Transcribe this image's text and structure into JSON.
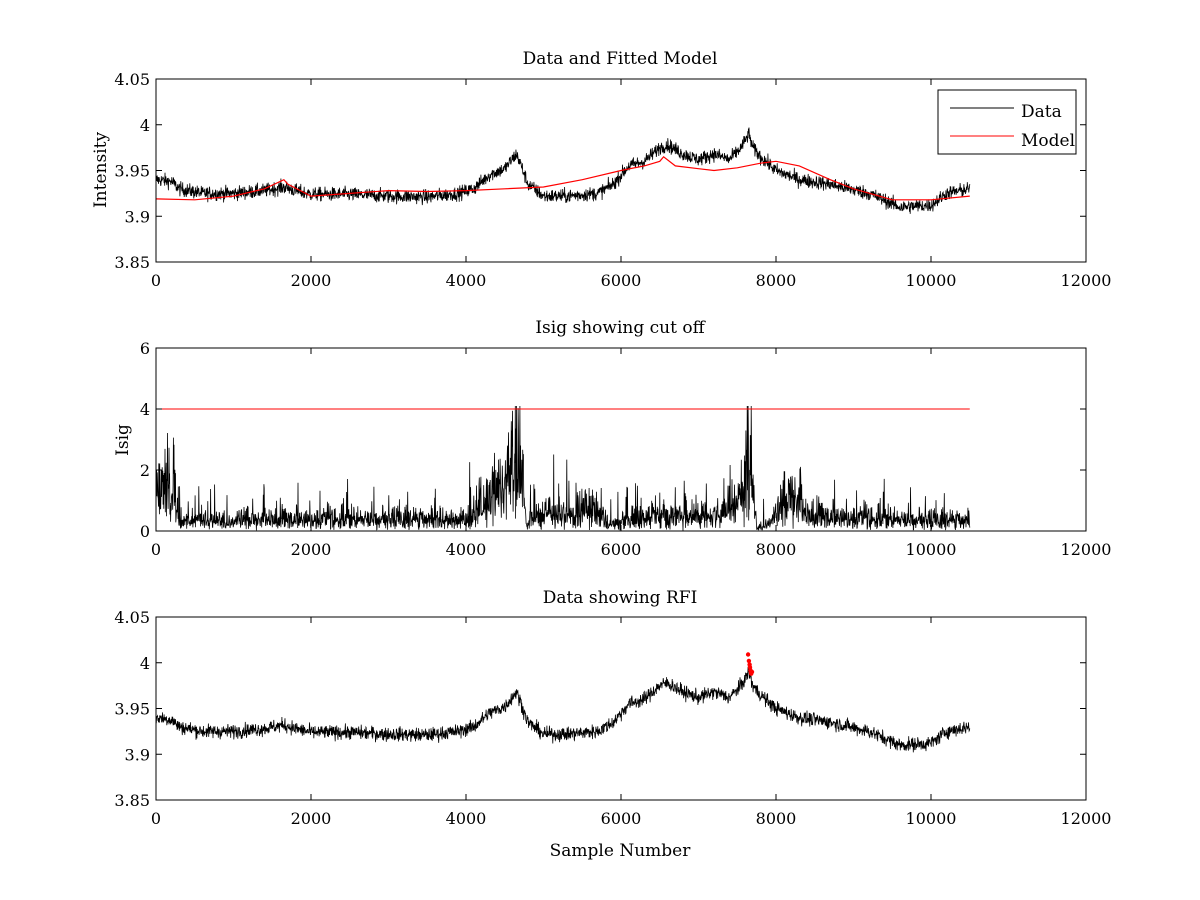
{
  "chart_data": [
    {
      "type": "line",
      "title": "Data and Fitted Model",
      "xlabel": "",
      "ylabel": "Intensity",
      "xlim": [
        0,
        12000
      ],
      "ylim": [
        3.85,
        4.05
      ],
      "xticks": [
        0,
        2000,
        4000,
        6000,
        8000,
        10000,
        12000
      ],
      "yticks": [
        3.85,
        3.9,
        3.95,
        4,
        4.05
      ],
      "xtick_labels": [
        "0",
        "2000",
        "4000",
        "6000",
        "8000",
        "10000",
        "12000"
      ],
      "ytick_labels": [
        "3.85",
        "3.9",
        "3.95",
        "4",
        "4.05"
      ],
      "grid": false,
      "legend": {
        "position": "top-right",
        "entries": [
          "Data",
          "Model"
        ]
      },
      "series": [
        {
          "name": "Data",
          "color": "#000000",
          "style": "noisy",
          "noise": 0.011,
          "x": [
            0,
            200,
            300,
            600,
            1000,
            1400,
            1650,
            1800,
            2000,
            2500,
            3000,
            3500,
            3900,
            4100,
            4300,
            4500,
            4650,
            4700,
            4800,
            5000,
            5300,
            5700,
            5900,
            6100,
            6300,
            6500,
            6600,
            6800,
            7000,
            7200,
            7400,
            7550,
            7650,
            7700,
            7800,
            8000,
            8300,
            8700,
            9200,
            9600,
            10000,
            10200,
            10500
          ],
          "y": [
            3.94,
            3.938,
            3.93,
            3.925,
            3.925,
            3.928,
            3.932,
            3.928,
            3.924,
            3.924,
            3.922,
            3.921,
            3.925,
            3.93,
            3.945,
            3.952,
            3.968,
            3.958,
            3.935,
            3.922,
            3.922,
            3.925,
            3.935,
            3.955,
            3.96,
            3.975,
            3.978,
            3.968,
            3.962,
            3.968,
            3.962,
            3.975,
            3.99,
            3.975,
            3.965,
            3.95,
            3.94,
            3.935,
            3.925,
            3.91,
            3.912,
            3.925,
            3.93
          ]
        },
        {
          "name": "Model",
          "color": "#ff0000",
          "style": "smooth",
          "x": [
            0,
            500,
            1000,
            1400,
            1650,
            1700,
            2000,
            2500,
            3000,
            3500,
            4000,
            4500,
            5000,
            5500,
            6000,
            6300,
            6500,
            6550,
            6700,
            7000,
            7200,
            7500,
            7800,
            8000,
            8300,
            8700,
            9000,
            9500,
            10000,
            10500
          ],
          "y": [
            3.919,
            3.918,
            3.922,
            3.93,
            3.94,
            3.935,
            3.922,
            3.925,
            3.928,
            3.927,
            3.928,
            3.93,
            3.932,
            3.94,
            3.95,
            3.955,
            3.96,
            3.965,
            3.955,
            3.952,
            3.95,
            3.953,
            3.958,
            3.96,
            3.955,
            3.94,
            3.93,
            3.918,
            3.918,
            3.922
          ]
        }
      ]
    },
    {
      "type": "line",
      "title": "Isig showing cut off",
      "xlabel": "",
      "ylabel": "Isig",
      "xlim": [
        0,
        12000
      ],
      "ylim": [
        0,
        6
      ],
      "xticks": [
        0,
        2000,
        4000,
        6000,
        8000,
        10000,
        12000
      ],
      "yticks": [
        0,
        2,
        4,
        6
      ],
      "xtick_labels": [
        "0",
        "2000",
        "4000",
        "6000",
        "8000",
        "10000",
        "12000"
      ],
      "ytick_labels": [
        "0",
        "2",
        "4",
        "6"
      ],
      "grid": false,
      "cutoff": {
        "y": 4,
        "x": [
          0,
          10500
        ],
        "color": "#ff0000"
      },
      "series": [
        {
          "name": "",
          "color": "#000000",
          "style": "spiky",
          "x": [
            0,
            200,
            260,
            300,
            1000,
            2000,
            3000,
            4000,
            4300,
            4500,
            4650,
            4700,
            4780,
            4850,
            5200,
            5700,
            5800,
            5850,
            6200,
            6500,
            7000,
            7300,
            7500,
            7650,
            7700,
            7750,
            8000,
            8200,
            8400,
            9000,
            10000,
            10500
          ],
          "y": [
            1.6,
            1.7,
            1.6,
            0.45,
            0.45,
            0.45,
            0.5,
            0.5,
            1.2,
            1.6,
            3.5,
            2.8,
            0.2,
            0.6,
            0.7,
            0.8,
            0.6,
            0.25,
            0.5,
            0.7,
            0.6,
            0.7,
            1.2,
            3.2,
            2.0,
            0.1,
            0.6,
            1.5,
            0.6,
            0.5,
            0.45,
            0.45
          ]
        }
      ]
    },
    {
      "type": "line",
      "title": "Data showing RFI",
      "xlabel": "Sample Number",
      "ylabel": "",
      "xlim": [
        0,
        12000
      ],
      "ylim": [
        3.85,
        4.05
      ],
      "xticks": [
        0,
        2000,
        4000,
        6000,
        8000,
        10000,
        12000
      ],
      "yticks": [
        3.85,
        3.9,
        3.95,
        4,
        4.05
      ],
      "xtick_labels": [
        "0",
        "2000",
        "4000",
        "6000",
        "8000",
        "10000",
        "12000"
      ],
      "ytick_labels": [
        "3.85",
        "3.9",
        "3.95",
        "4",
        "4.05"
      ],
      "grid": false,
      "series": [
        {
          "name": "",
          "color": "#000000",
          "style": "noisy",
          "noise": 0.011,
          "x": [
            0,
            200,
            300,
            600,
            1000,
            1400,
            1650,
            1800,
            2000,
            2500,
            3000,
            3500,
            3900,
            4100,
            4300,
            4500,
            4650,
            4700,
            4800,
            5000,
            5300,
            5700,
            5900,
            6100,
            6300,
            6500,
            6600,
            6800,
            7000,
            7200,
            7400,
            7550,
            7650,
            7700,
            7800,
            8000,
            8300,
            8700,
            9200,
            9600,
            10000,
            10200,
            10500
          ],
          "y": [
            3.94,
            3.938,
            3.93,
            3.925,
            3.925,
            3.928,
            3.932,
            3.928,
            3.924,
            3.924,
            3.922,
            3.921,
            3.925,
            3.93,
            3.945,
            3.952,
            3.968,
            3.958,
            3.935,
            3.922,
            3.922,
            3.925,
            3.935,
            3.955,
            3.96,
            3.975,
            3.978,
            3.968,
            3.962,
            3.968,
            3.962,
            3.975,
            3.99,
            3.975,
            3.965,
            3.95,
            3.94,
            3.935,
            3.925,
            3.91,
            3.912,
            3.925,
            3.93
          ]
        },
        {
          "name": "",
          "color": "#ff0000",
          "style": "markers",
          "x": [
            7640,
            7650,
            7660,
            7665,
            7670,
            7675,
            7680,
            7690
          ],
          "y": [
            4.009,
            4.002,
            3.998,
            3.995,
            3.992,
            3.99,
            3.988,
            3.99
          ]
        }
      ]
    }
  ]
}
